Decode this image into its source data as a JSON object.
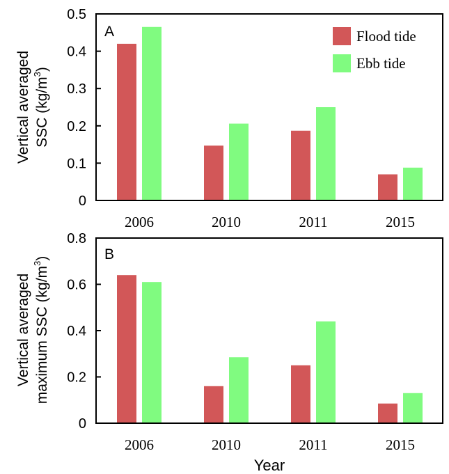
{
  "colors": {
    "flood": "#d25758",
    "ebb": "#80fb80"
  },
  "x_label": "Year",
  "chart_data": [
    {
      "type": "bar",
      "panel_label": "A",
      "categories": [
        "2006",
        "2010",
        "2011",
        "2015"
      ],
      "series": [
        {
          "name": "Flood tide",
          "values": [
            0.42,
            0.147,
            0.187,
            0.07
          ]
        },
        {
          "name": "Ebb tide",
          "values": [
            0.465,
            0.206,
            0.25,
            0.088
          ]
        }
      ],
      "ylabel_lines": [
        "Vertical averaged",
        "SSC (kg/m",
        "3",
        ")"
      ],
      "ylim": [
        0,
        0.5
      ],
      "yticks": [
        "0",
        "0.1",
        "0.2",
        "0.3",
        "0.4",
        "0.5"
      ],
      "legend": "top-right",
      "grid": false
    },
    {
      "type": "bar",
      "panel_label": "B",
      "categories": [
        "2006",
        "2010",
        "2011",
        "2015"
      ],
      "series": [
        {
          "name": "Flood tide",
          "values": [
            0.64,
            0.16,
            0.25,
            0.085
          ]
        },
        {
          "name": "Ebb tide",
          "values": [
            0.61,
            0.285,
            0.44,
            0.13
          ]
        }
      ],
      "ylabel_lines": [
        "Vertical averaged",
        "maximum  SSC (kg/m",
        "3",
        ")"
      ],
      "ylim": [
        0,
        0.8
      ],
      "yticks": [
        "0",
        "0.2",
        "0.4",
        "0.6",
        "0.8"
      ],
      "grid": false
    }
  ]
}
